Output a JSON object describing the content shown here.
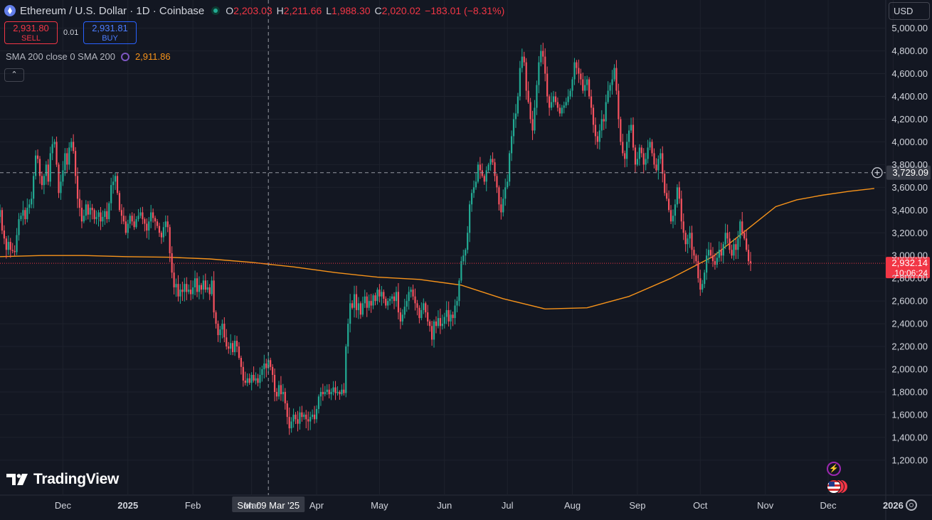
{
  "header": {
    "symbol_title": "Ethereum / U.S. Dollar · 1D · Coinbase",
    "ohlc": {
      "open_label": "O",
      "open": "2,203.03",
      "high_label": "H",
      "high": "2,211.66",
      "low_label": "L",
      "low": "1,988.30",
      "close_label": "C",
      "close": "2,020.02",
      "change": "−183.01 (−8.31%)"
    }
  },
  "trade": {
    "sell_price": "2,931.80",
    "sell_label": "SELL",
    "spread": "0.01",
    "buy_price": "2,931.81",
    "buy_label": "BUY"
  },
  "indicator": {
    "label": "SMA 200 close 0 SMA 200",
    "value": "2,911.86"
  },
  "currency": "USD",
  "logo_text": "TradingView",
  "crosshair": {
    "date_label": "Sun 09 Mar '25",
    "price_label": "3,729.09",
    "price": 3729.09
  },
  "last_price": {
    "label": "2,932.14",
    "countdown": "10:06:24",
    "price": 2932.14
  },
  "colors": {
    "up": "#22ab94",
    "down": "#f7525f",
    "sma": "#f7931a",
    "background": "#131722",
    "grid": "#1e222d"
  },
  "icons": [
    "eth-logo-icon",
    "market-open-dot-icon",
    "sma-settings-icon",
    "chevron-up-icon",
    "tradingview-logo-icon",
    "lightning-icon",
    "us-flag-icon",
    "settings-gear-icon",
    "crosshair-plus-icon"
  ],
  "chart_data": {
    "type": "candlestick",
    "ylim": [
      1100,
      5150
    ],
    "y_ticks": [
      {
        "value": 1200,
        "label": "1,200.00"
      },
      {
        "value": 1400,
        "label": "1,400.00"
      },
      {
        "value": 1600,
        "label": "1,600.00"
      },
      {
        "value": 1800,
        "label": "1,800.00"
      },
      {
        "value": 2000,
        "label": "2,000.00"
      },
      {
        "value": 2200,
        "label": "2,200.00"
      },
      {
        "value": 2400,
        "label": "2,400.00"
      },
      {
        "value": 2600,
        "label": "2,600.00"
      },
      {
        "value": 2800,
        "label": "2,800.00"
      },
      {
        "value": 3000,
        "label": "3,000.00"
      },
      {
        "value": 3200,
        "label": "3,200.00"
      },
      {
        "value": 3400,
        "label": "3,400.00"
      },
      {
        "value": 3600,
        "label": "3,600.00"
      },
      {
        "value": 3800,
        "label": "3,800.00"
      },
      {
        "value": 4000,
        "label": "4,000.00"
      },
      {
        "value": 4200,
        "label": "4,200.00"
      },
      {
        "value": 4400,
        "label": "4,400.00"
      },
      {
        "value": 4600,
        "label": "4,600.00"
      },
      {
        "value": 4800,
        "label": "4,800.00"
      },
      {
        "value": 5000,
        "label": "5,000.00"
      }
    ],
    "x_ticks": [
      {
        "index": 30,
        "label": "Dec"
      },
      {
        "index": 61,
        "label": "2025",
        "bold": true
      },
      {
        "index": 92,
        "label": "Feb"
      },
      {
        "index": 120,
        "label": "Mar"
      },
      {
        "index": 151,
        "label": "Apr"
      },
      {
        "index": 181,
        "label": "May"
      },
      {
        "index": 212,
        "label": "Jun"
      },
      {
        "index": 242,
        "label": "Jul"
      },
      {
        "index": 273,
        "label": "Aug"
      },
      {
        "index": 304,
        "label": "Sep"
      },
      {
        "index": 334,
        "label": "Oct"
      },
      {
        "index": 365,
        "label": "Nov"
      },
      {
        "index": 395,
        "label": "Dec"
      },
      {
        "index": 426,
        "label": "2026",
        "bold": true
      }
    ],
    "crosshair_index": 128,
    "closes": [
      3400,
      3220,
      3150,
      3050,
      3120,
      3050,
      3040,
      3030,
      3180,
      3320,
      3350,
      3400,
      3320,
      3420,
      3450,
      3500,
      3700,
      3880,
      3850,
      3700,
      3620,
      3700,
      3800,
      3650,
      3900,
      3980,
      4000,
      3800,
      3550,
      3650,
      3750,
      3900,
      3800,
      3950,
      4000,
      3920,
      3700,
      3500,
      3420,
      3300,
      3350,
      3450,
      3360,
      3420,
      3400,
      3320,
      3340,
      3380,
      3300,
      3340,
      3390,
      3320,
      3460,
      3620,
      3650,
      3700,
      3550,
      3400,
      3350,
      3300,
      3200,
      3280,
      3350,
      3300,
      3250,
      3320,
      3350,
      3380,
      3320,
      3280,
      3220,
      3300,
      3380,
      3330,
      3300,
      3260,
      3200,
      3160,
      3250,
      3300,
      3250,
      3020,
      2850,
      2720,
      2750,
      2640,
      2700,
      2680,
      2750,
      2680,
      2700,
      2660,
      2720,
      2800,
      2680,
      2740,
      2700,
      2780,
      2700,
      2720,
      2660,
      2780,
      2500,
      2400,
      2300,
      2350,
      2400,
      2280,
      2200,
      2180,
      2230,
      2150,
      2250,
      2200,
      2100,
      2020,
      1900,
      1880,
      1920,
      1880,
      1950,
      1900,
      1920,
      1880,
      1950,
      2000,
      2050,
      2010,
      2080,
      2020,
      1950,
      1800,
      1760,
      1860,
      1780,
      1800,
      1700,
      1580,
      1480,
      1540,
      1600,
      1560,
      1520,
      1620,
      1580,
      1600,
      1560,
      1540,
      1580,
      1600,
      1560,
      1650,
      1760,
      1800,
      1780,
      1800,
      1820,
      1780,
      1800,
      1840,
      1790,
      1800,
      1780,
      1820,
      1790,
      2200,
      2400,
      2580,
      2540,
      2660,
      2520,
      2580,
      2480,
      2580,
      2640,
      2540,
      2600,
      2560,
      2650,
      2600,
      2700,
      2640,
      2680,
      2620,
      2560,
      2600,
      2620,
      2640,
      2600,
      2680,
      2500,
      2420,
      2480,
      2550,
      2600,
      2680,
      2700,
      2640,
      2580,
      2540,
      2450,
      2520,
      2580,
      2500,
      2420,
      2380,
      2260,
      2420,
      2380,
      2450,
      2380,
      2400,
      2460,
      2520,
      2420,
      2480,
      2450,
      2560,
      2600,
      2780,
      2950,
      3000,
      3050,
      3200,
      3450,
      3550,
      3600,
      3650,
      3800,
      3750,
      3700,
      3650,
      3750,
      3800,
      3850,
      3820,
      3700,
      3600,
      3450,
      3380,
      3500,
      3600,
      3650,
      3900,
      4050,
      4200,
      4250,
      4400,
      4650,
      4750,
      4700,
      4450,
      4350,
      4200,
      4100,
      4300,
      4500,
      4700,
      4800,
      4750,
      4600,
      4400,
      4300,
      4350,
      4400,
      4350,
      4300,
      4250,
      4300,
      4320,
      4350,
      4400,
      4450,
      4550,
      4700,
      4650,
      4600,
      4550,
      4450,
      4500,
      4550,
      4400,
      4300,
      4150,
      4050,
      4000,
      4100,
      4200,
      4180,
      4350,
      4450,
      4500,
      4550,
      4650,
      4450,
      4200,
      4000,
      3900,
      3850,
      4000,
      4100,
      4150,
      3950,
      3800,
      3850,
      3950,
      3900,
      3800,
      3850,
      3950,
      4000,
      3900,
      3800,
      3750,
      3850,
      3900,
      3720,
      3550,
      3500,
      3400,
      3300,
      3350,
      3450,
      3600,
      3500,
      3300,
      3200,
      3100,
      3150,
      3200,
      3050,
      3000,
      2950,
      2800,
      2700,
      2750,
      2850,
      3000,
      3050,
      3000,
      2950,
      2920,
      2980,
      3050,
      3000,
      3100,
      3200,
      3150,
      3050,
      3000,
      3100,
      3050,
      3150,
      3300,
      3200,
      3150,
      3050,
      2950,
      2932
    ],
    "sma_points": [
      [
        0,
        2990
      ],
      [
        20,
        3000
      ],
      [
        40,
        3000
      ],
      [
        60,
        2990
      ],
      [
        80,
        2985
      ],
      [
        100,
        2970
      ],
      [
        120,
        2940
      ],
      [
        140,
        2900
      ],
      [
        160,
        2850
      ],
      [
        180,
        2810
      ],
      [
        200,
        2790
      ],
      [
        220,
        2740
      ],
      [
        240,
        2620
      ],
      [
        260,
        2530
      ],
      [
        280,
        2540
      ],
      [
        300,
        2640
      ],
      [
        320,
        2800
      ],
      [
        340,
        2990
      ],
      [
        355,
        3210
      ],
      [
        370,
        3430
      ],
      [
        380,
        3490
      ],
      [
        392,
        3530
      ],
      [
        405,
        3565
      ],
      [
        417,
        3590
      ]
    ]
  }
}
